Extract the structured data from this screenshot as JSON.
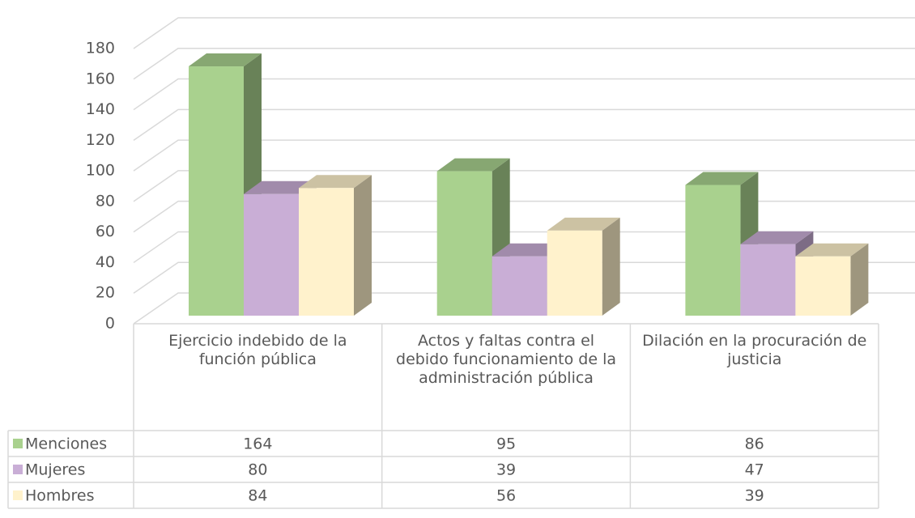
{
  "chart_data": {
    "type": "bar3d",
    "categories": [
      "Ejercicio indebido de la función pública",
      "Actos y faltas contra el debido funcionamiento de la administración pública",
      "Dilación en la procuración de justicia"
    ],
    "series": [
      {
        "name": "Menciones",
        "color": "#a9d18e",
        "values": [
          164,
          95,
          86
        ]
      },
      {
        "name": "Mujeres",
        "color": "#c9aed6",
        "values": [
          80,
          39,
          47
        ]
      },
      {
        "name": "Hombres",
        "color": "#fff2cc",
        "values": [
          84,
          56,
          39
        ]
      }
    ],
    "ylim": [
      0,
      180
    ],
    "yticks": [
      0,
      20,
      40,
      60,
      80,
      100,
      120,
      140,
      160,
      180
    ],
    "grid": true
  }
}
